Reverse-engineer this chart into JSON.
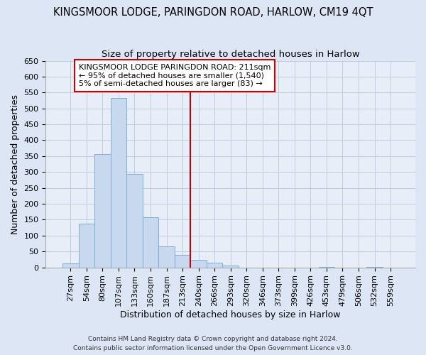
{
  "title": "KINGSMOOR LODGE, PARINGDON ROAD, HARLOW, CM19 4QT",
  "subtitle": "Size of property relative to detached houses in Harlow",
  "xlabel": "Distribution of detached houses by size in Harlow",
  "ylabel": "Number of detached properties",
  "bar_labels": [
    "27sqm",
    "54sqm",
    "80sqm",
    "107sqm",
    "133sqm",
    "160sqm",
    "187sqm",
    "213sqm",
    "240sqm",
    "266sqm",
    "293sqm",
    "320sqm",
    "346sqm",
    "373sqm",
    "399sqm",
    "426sqm",
    "453sqm",
    "479sqm",
    "506sqm",
    "532sqm",
    "559sqm"
  ],
  "bar_values": [
    12,
    137,
    357,
    533,
    293,
    157,
    65,
    40,
    23,
    14,
    5,
    0,
    0,
    0,
    0,
    0,
    2,
    0,
    0,
    2,
    0
  ],
  "bar_color": "#c8d8ee",
  "bar_edge_color": "#7ab0d8",
  "vline_x": 7.5,
  "annotation_title": "KINGSMOOR LODGE PARINGDON ROAD: 211sqm",
  "annotation_line1": "← 95% of detached houses are smaller (1,540)",
  "annotation_line2": "5% of semi-detached houses are larger (83) →",
  "vline_color": "#cc0000",
  "ylim": [
    0,
    650
  ],
  "yticks": [
    0,
    50,
    100,
    150,
    200,
    250,
    300,
    350,
    400,
    450,
    500,
    550,
    600,
    650
  ],
  "footnote1": "Contains HM Land Registry data © Crown copyright and database right 2024.",
  "footnote2": "Contains public sector information licensed under the Open Government Licence v3.0.",
  "bg_color": "#dce6f5",
  "plot_bg_color": "#e8eef8",
  "grid_color": "#c0cce0",
  "title_fontsize": 10.5,
  "subtitle_fontsize": 9.5,
  "xlabel_fontsize": 9,
  "ylabel_fontsize": 9,
  "tick_fontsize": 8,
  "annot_fontsize": 8
}
